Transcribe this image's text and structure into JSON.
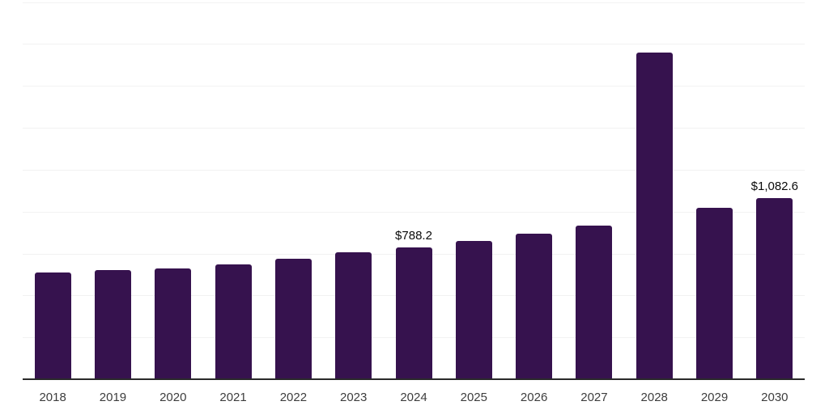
{
  "chart_data": {
    "type": "bar",
    "title": "",
    "xlabel": "",
    "ylabel": "",
    "categories": [
      "2018",
      "2019",
      "2020",
      "2021",
      "2022",
      "2023",
      "2024",
      "2025",
      "2026",
      "2027",
      "2028",
      "2029",
      "2030"
    ],
    "values": [
      636,
      654,
      663,
      686,
      718,
      756,
      788.2,
      826,
      869,
      918,
      1951,
      1024,
      1082.6
    ],
    "data_labels": [
      "",
      "",
      "",
      "",
      "",
      "",
      "$788.2",
      "",
      "",
      "",
      "",
      "",
      "$1,082.6"
    ],
    "ylim": [
      0,
      2250
    ],
    "grid_step": 250,
    "grid": "horizontal-only",
    "legend_position": "none",
    "y_tick_labels_visible": false,
    "colors": {
      "bar": "#36124E",
      "gridline": "#F2F2F2",
      "axis_line": "#2A2A2A",
      "x_tick_label": "#3D3D3D",
      "data_label": "#0A0A0A",
      "background": "#FFFFFF"
    }
  }
}
